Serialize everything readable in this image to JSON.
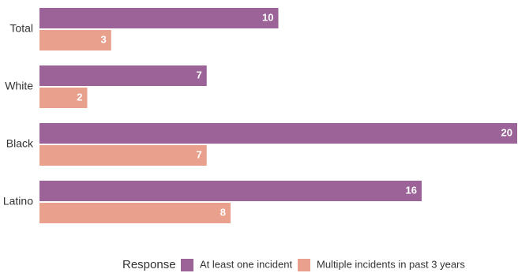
{
  "chart_data": {
    "type": "bar",
    "orientation": "horizontal",
    "title": "",
    "xlabel": "",
    "ylabel": "",
    "xlim": [
      0,
      20
    ],
    "grid": false,
    "categories": [
      "Total",
      "White",
      "Black",
      "Latino"
    ],
    "series": [
      {
        "name": "At least one incident",
        "color": "#9b6397",
        "values": [
          10,
          7,
          20,
          16
        ]
      },
      {
        "name": "Multiple incidents in past 3 years",
        "color": "#e9a08c",
        "values": [
          3,
          2,
          7,
          8
        ]
      }
    ],
    "data_labels": true,
    "legend": {
      "title": "Response",
      "placement": "bottom-center"
    }
  }
}
